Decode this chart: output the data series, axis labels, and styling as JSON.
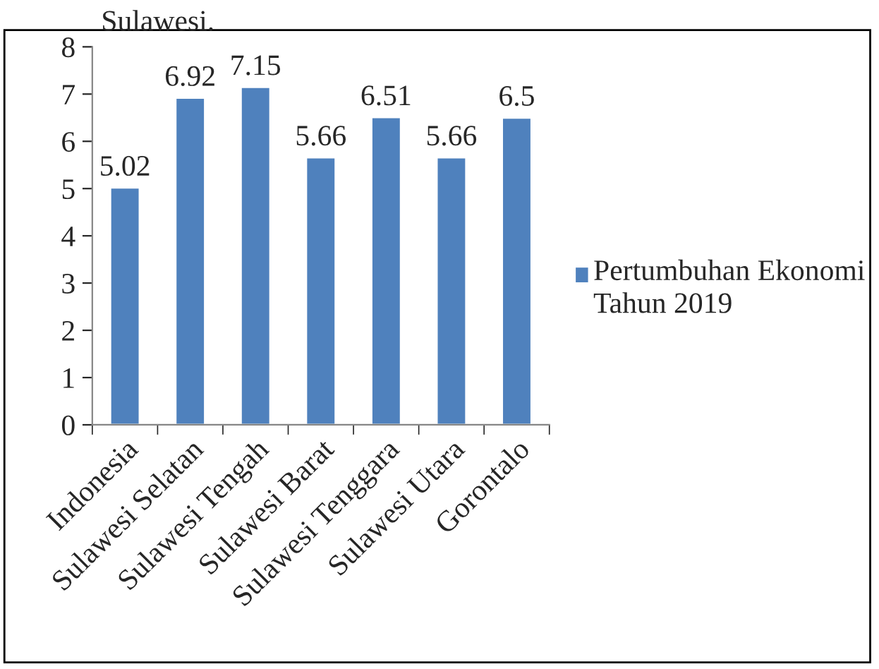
{
  "chart_data": {
    "type": "bar",
    "categories": [
      "Indonesia",
      "Sulawesi Selatan",
      "Sulawesi Tengah",
      "Sulawesi Barat",
      "Sulawesi Tenggara",
      "Sulawesi Utara",
      "Gorontalo"
    ],
    "series": [
      {
        "name": "Pertumbuhan Ekonomi Tahun 2019",
        "color": "#4f81bd",
        "values": [
          5.02,
          6.92,
          7.15,
          5.66,
          6.51,
          5.66,
          6.5
        ]
      }
    ],
    "ylim": [
      0,
      8
    ],
    "yticks": [
      0,
      1,
      2,
      3,
      4,
      5,
      6,
      7,
      8
    ],
    "data_labels": true,
    "legend": "right",
    "grid": false,
    "annotations": [
      "Sulawesi."
    ]
  }
}
